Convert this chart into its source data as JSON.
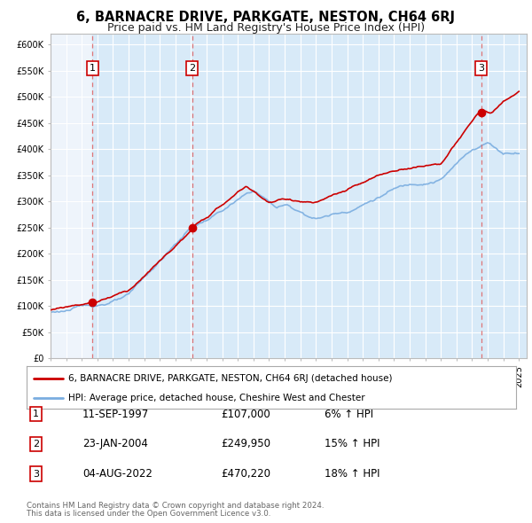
{
  "title": "6, BARNACRE DRIVE, PARKGATE, NESTON, CH64 6RJ",
  "subtitle": "Price paid vs. HM Land Registry's House Price Index (HPI)",
  "ylim": [
    0,
    620000
  ],
  "yticks": [
    0,
    50000,
    100000,
    150000,
    200000,
    250000,
    300000,
    350000,
    400000,
    450000,
    500000,
    550000,
    600000
  ],
  "ytick_labels": [
    "£0",
    "£50K",
    "£100K",
    "£150K",
    "£200K",
    "£250K",
    "£300K",
    "£350K",
    "£400K",
    "£450K",
    "£500K",
    "£550K",
    "£600K"
  ],
  "xlim_start": 1995.0,
  "xlim_end": 2025.5,
  "sale_line_color": "#cc0000",
  "hpi_line_color": "#7aade0",
  "vline_color": "#e06060",
  "chart_bg_color": "#eef4fb",
  "shade_color": "#d8eaf8",
  "purchases": [
    {
      "num": 1,
      "date_x": 1997.69,
      "price": 107000,
      "label": "11-SEP-1997",
      "pct": "6%"
    },
    {
      "num": 2,
      "date_x": 2004.06,
      "price": 249950,
      "label": "23-JAN-2004",
      "pct": "15%"
    },
    {
      "num": 3,
      "date_x": 2022.59,
      "price": 470220,
      "label": "04-AUG-2022",
      "pct": "18%"
    }
  ],
  "legend_line1": "6, BARNACRE DRIVE, PARKGATE, NESTON, CH64 6RJ (detached house)",
  "legend_line2": "HPI: Average price, detached house, Cheshire West and Chester",
  "footer1": "Contains HM Land Registry data © Crown copyright and database right 2024.",
  "footer2": "This data is licensed under the Open Government Licence v3.0.",
  "title_fontsize": 10.5,
  "subtitle_fontsize": 9,
  "axis_fontsize": 7
}
